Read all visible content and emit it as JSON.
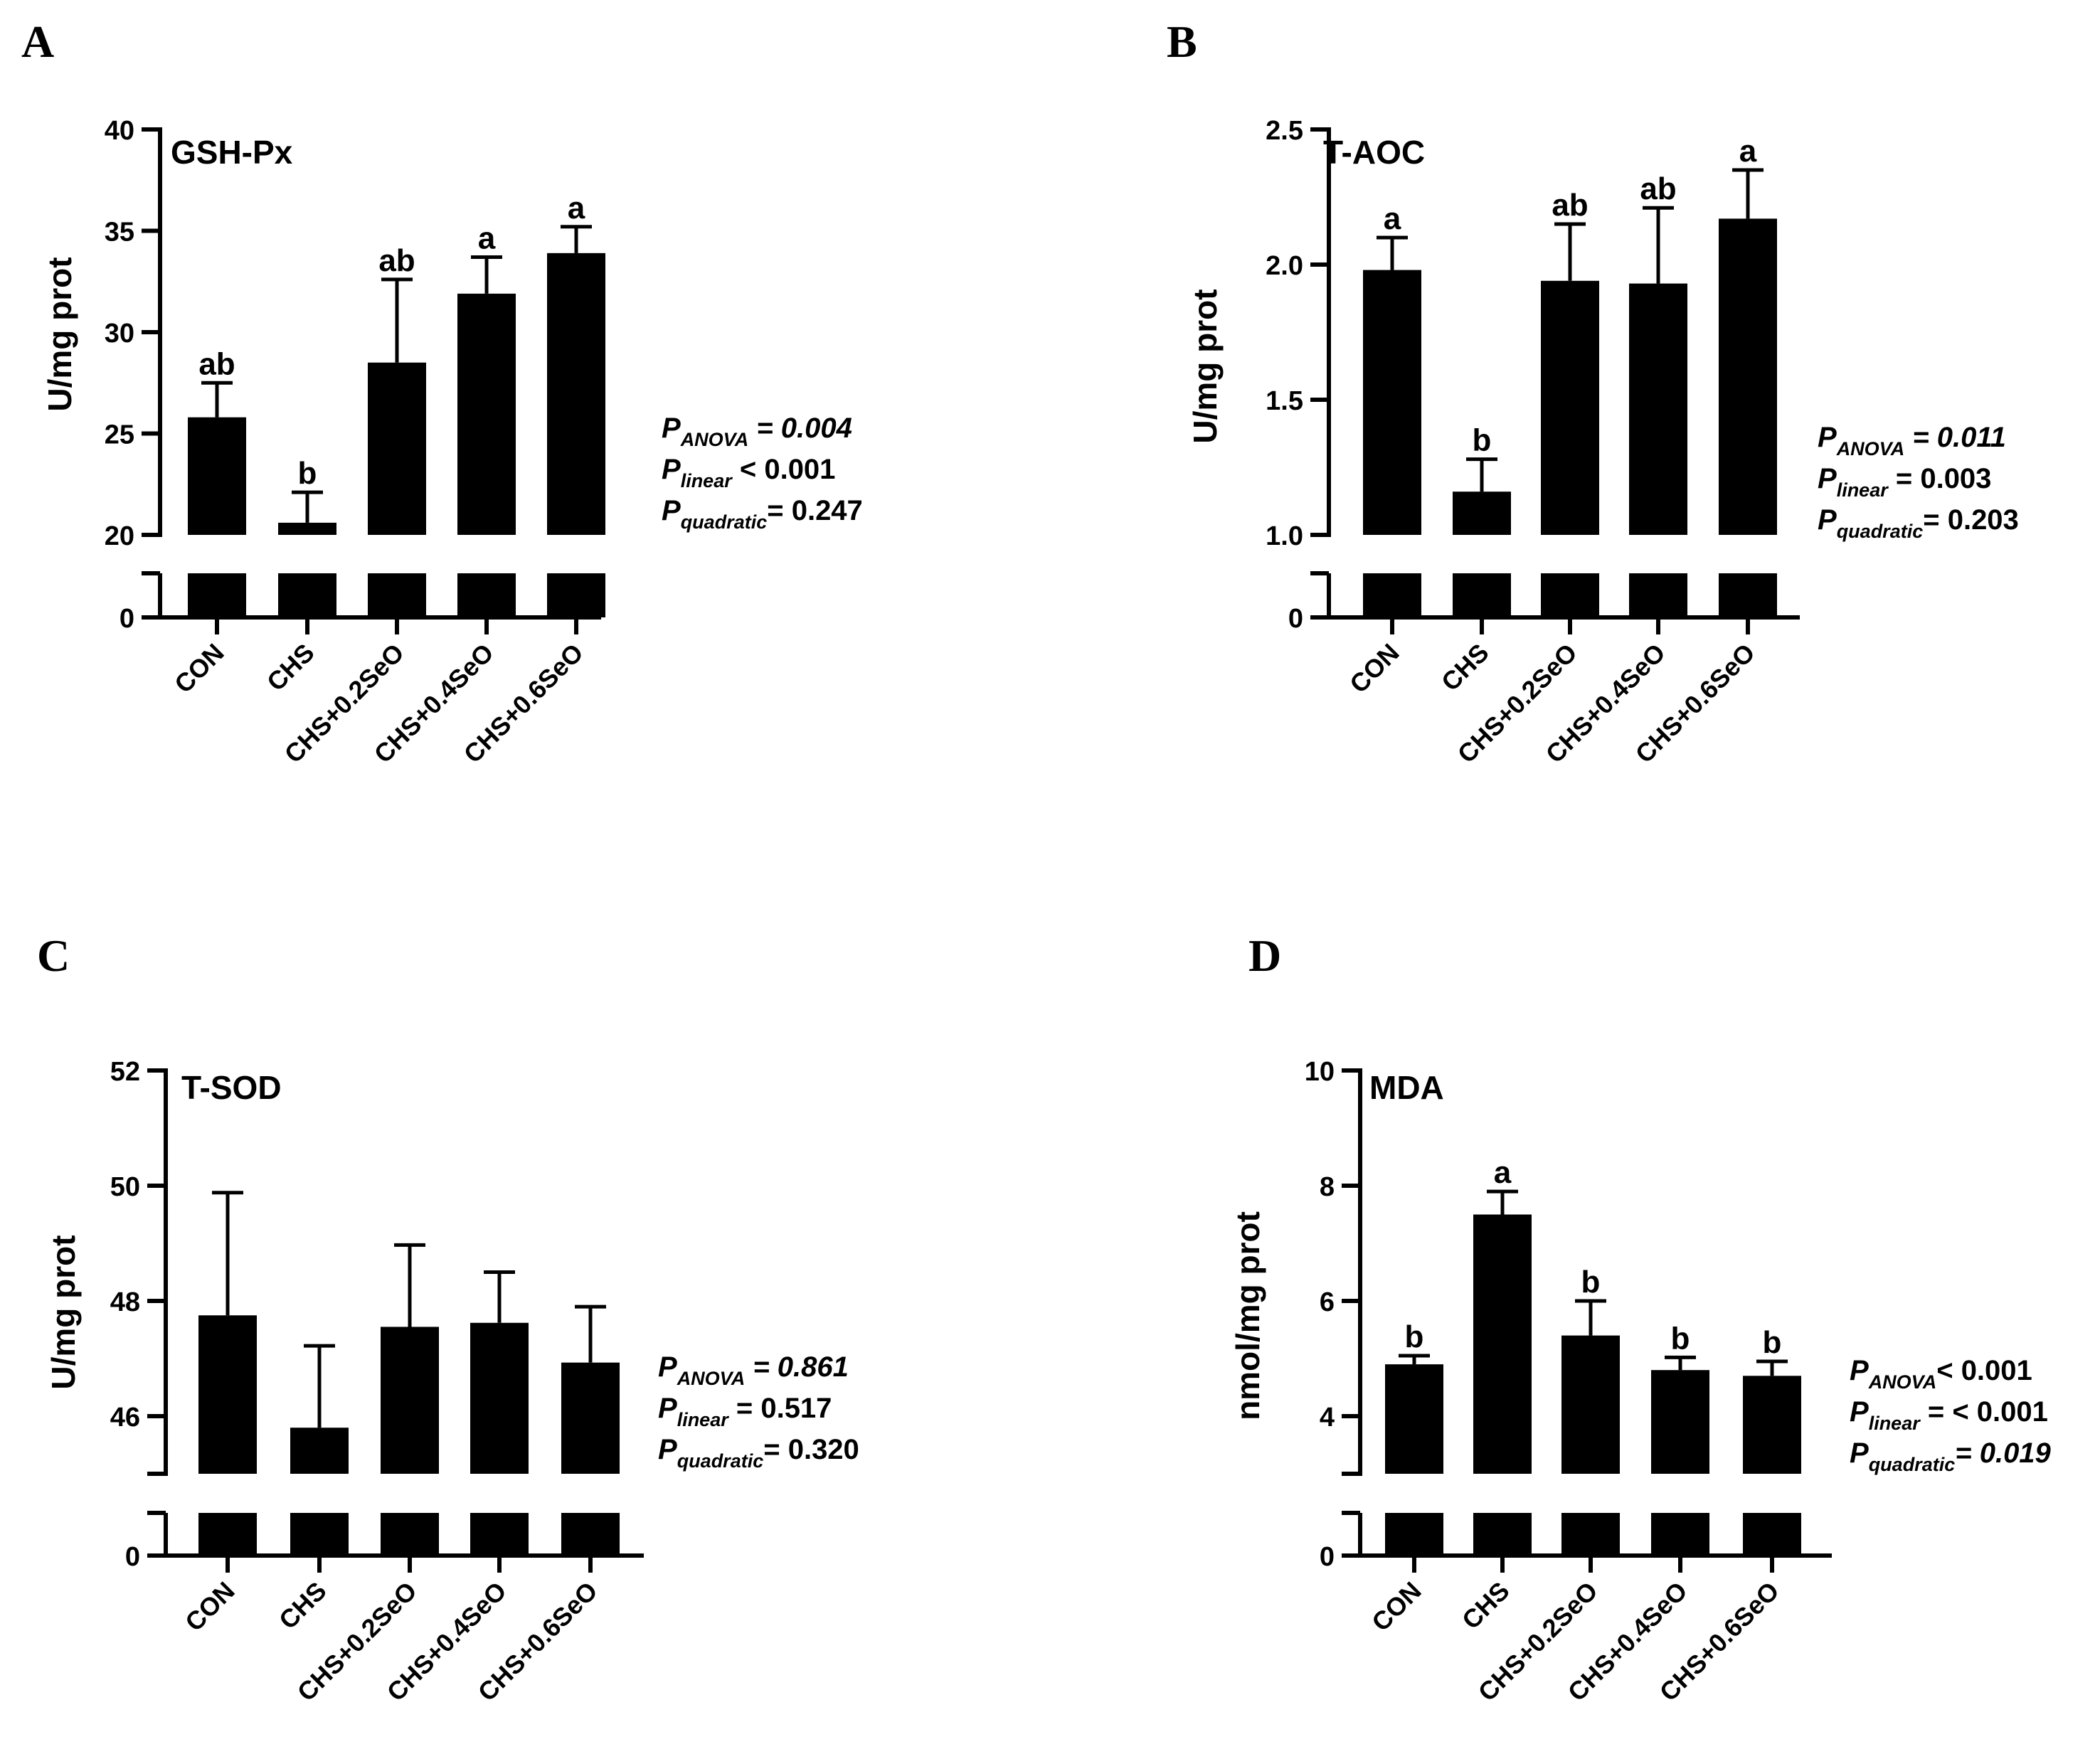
{
  "figure": {
    "categories": [
      "CON",
      "CHS",
      "CHS+0.2SeO",
      "CHS+0.4SeO",
      "CHS+0.6SeO"
    ],
    "break_tick_label": "0"
  },
  "chart_data": [
    {
      "type": "bar",
      "panel": "A",
      "title": "GSH-Px",
      "ylabel": "U/mg prot",
      "ylim": [
        20,
        40
      ],
      "yticks": [
        "20",
        "25",
        "30",
        "35",
        "40"
      ],
      "categories": [
        "CON",
        "CHS",
        "CHS+0.2SeO",
        "CHS+0.4SeO",
        "CHS+0.6SeO"
      ],
      "values": [
        25.8,
        20.6,
        28.5,
        31.9,
        33.9
      ],
      "errors": [
        1.7,
        1.5,
        4.1,
        1.8,
        1.3
      ],
      "letters": [
        "ab",
        "b",
        "ab",
        "a",
        "a"
      ],
      "stats": [
        {
          "p": "P",
          "sub": "ANOVA",
          "op": " = ",
          "value": "0.004",
          "italic": true
        },
        {
          "p": "P",
          "sub": "linear",
          "op": " <  ",
          "value": "0.001",
          "italic": false
        },
        {
          "p": "P",
          "sub": "quadratic",
          "op": "= ",
          "value": "0.247",
          "italic": false
        }
      ]
    },
    {
      "type": "bar",
      "panel": "B",
      "title": "T-AOC",
      "ylabel": "U/mg prot",
      "ylim": [
        1.0,
        2.5
      ],
      "yticks": [
        "1.0",
        "1.5",
        "2.0",
        "2.5"
      ],
      "categories": [
        "CON",
        "CHS",
        "CHS+0.2SeO",
        "CHS+0.4SeO",
        "CHS+0.6SeO"
      ],
      "values": [
        1.98,
        1.16,
        1.94,
        1.93,
        2.17
      ],
      "errors": [
        0.12,
        0.12,
        0.21,
        0.28,
        0.18
      ],
      "letters": [
        "a",
        "b",
        "ab",
        "ab",
        "a"
      ],
      "stats": [
        {
          "p": "P",
          "sub": "ANOVA",
          "op": " = ",
          "value": "0.011",
          "italic": true
        },
        {
          "p": "P",
          "sub": "linear",
          "op": " =  ",
          "value": "0.003",
          "italic": false
        },
        {
          "p": "P",
          "sub": "quadratic",
          "op": "= ",
          "value": "0.203",
          "italic": false
        }
      ]
    },
    {
      "type": "bar",
      "panel": "C",
      "title": "T-SOD",
      "ylabel": "U/mg prot",
      "ylim": [
        45,
        52
      ],
      "yticks": [
        "46",
        "48",
        "50",
        "52"
      ],
      "ytick_values": [
        46,
        48,
        50,
        52
      ],
      "categories": [
        "CON",
        "CHS",
        "CHS+0.2SeO",
        "CHS+0.4SeO",
        "CHS+0.6SeO"
      ],
      "values": [
        47.75,
        45.8,
        47.55,
        47.62,
        46.93
      ],
      "errors": [
        2.13,
        1.42,
        1.42,
        0.88,
        0.97
      ],
      "letters": [
        "",
        "",
        "",
        "",
        ""
      ],
      "stats": [
        {
          "p": "P",
          "sub": "ANOVA",
          "op": " = ",
          "value": "0.861",
          "italic": true
        },
        {
          "p": "P",
          "sub": "linear",
          "op": " =  ",
          "value": "0.517",
          "italic": false
        },
        {
          "p": "P",
          "sub": "quadratic",
          "op": "= ",
          "value": "0.320",
          "italic": false
        }
      ]
    },
    {
      "type": "bar",
      "panel": "D",
      "title": "MDA",
      "ylabel": "nmol/mg prot",
      "ylim": [
        3,
        10
      ],
      "yticks": [
        "4",
        "6",
        "8",
        "10"
      ],
      "ytick_values": [
        4,
        6,
        8,
        10
      ],
      "categories": [
        "CON",
        "CHS",
        "CHS+0.2SeO",
        "CHS+0.4SeO",
        "CHS+0.6SeO"
      ],
      "values": [
        4.9,
        7.5,
        5.4,
        4.8,
        4.7
      ],
      "errors": [
        0.15,
        0.4,
        0.6,
        0.22,
        0.25
      ],
      "letters": [
        "b",
        "a",
        "b",
        "b",
        "b"
      ],
      "stats": [
        {
          "p": "P",
          "sub": "ANOVA",
          "op": "<  ",
          "value": "0.001",
          "italic": false
        },
        {
          "p": "P",
          "sub": "linear",
          "op": " =  <  ",
          "value": "0.001",
          "italic": false
        },
        {
          "p": "P",
          "sub": "quadratic",
          "op": "= ",
          "value": "0.019",
          "italic": true
        }
      ]
    }
  ]
}
